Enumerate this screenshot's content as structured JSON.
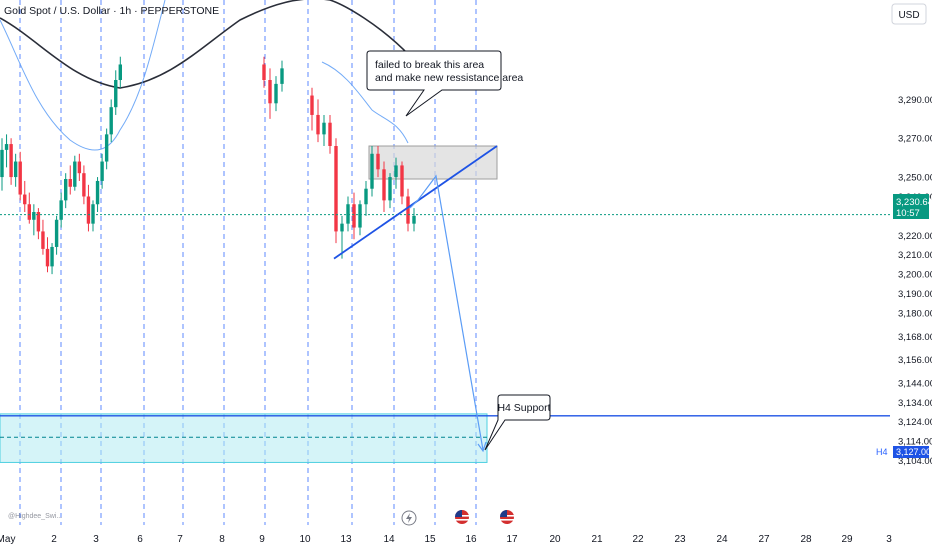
{
  "header": {
    "title": "Gold Spot / U.S. Dollar · 1h · PEPPERSTONE"
  },
  "currency": "USD",
  "price_tag": {
    "price": "3,230.64",
    "countdown": "10:57"
  },
  "level_tag": {
    "prefix": "H4",
    "price": "3,127.00"
  },
  "watermark": "@Highdee_Swi...",
  "annotations": {
    "resistance_note": [
      "failed to break this area",
      "and make new ressistance area"
    ],
    "support_note": "H4 Support"
  },
  "icons": {
    "event_1": "lightning-icon",
    "event_2": "us-flag-icon",
    "event_3": "us-flag-icon"
  },
  "colors": {
    "bull": "#089981",
    "bear": "#f23645",
    "accent": "#2962ff",
    "support_zone": "#b2ebf2"
  },
  "chart_data": {
    "type": "candlestick",
    "title": "Gold Spot / U.S. Dollar · 1h · PEPPERSTONE",
    "y_ticks": [
      3290,
      3270,
      3250,
      3240,
      3220,
      3210,
      3200,
      3190,
      3180,
      3168,
      3156,
      3144,
      3134,
      3124,
      3114,
      3104
    ],
    "y_tick_labels": [
      "3,290.00",
      "3,270.00",
      "3,250.00",
      "3,240.00",
      "3,220.00",
      "3,210.00",
      "3,200.00",
      "3,190.00",
      "3,180.00",
      "3,168.00",
      "3,156.00",
      "3,144.00",
      "3,134.00",
      "3,124.00",
      "3,114.00",
      "3,104.00"
    ],
    "x_ticks": [
      "May",
      "2",
      "3",
      "6",
      "7",
      "8",
      "9",
      "10",
      "13",
      "14",
      "15",
      "16",
      "17",
      "20",
      "21",
      "22",
      "23",
      "24",
      "27",
      "28",
      "29",
      "3"
    ],
    "current_price": 3230.64,
    "key_level": 3127.0,
    "resistance_zone": [
      3249,
      3266
    ],
    "support_zone": [
      3103,
      3128
    ],
    "trendline_from": [
      "May 12",
      3208
    ],
    "trendline_to": [
      "May 15",
      3266
    ],
    "projection_target": 3127.0,
    "candles": [
      {
        "o": 3250,
        "h": 3270,
        "l": 3243,
        "c": 3264
      },
      {
        "o": 3264,
        "h": 3272,
        "l": 3255,
        "c": 3267
      },
      {
        "o": 3267,
        "h": 3270,
        "l": 3246,
        "c": 3250
      },
      {
        "o": 3250,
        "h": 3262,
        "l": 3245,
        "c": 3258
      },
      {
        "o": 3258,
        "h": 3263,
        "l": 3238,
        "c": 3241
      },
      {
        "o": 3241,
        "h": 3248,
        "l": 3232,
        "c": 3236
      },
      {
        "o": 3236,
        "h": 3242,
        "l": 3226,
        "c": 3228
      },
      {
        "o": 3228,
        "h": 3236,
        "l": 3220,
        "c": 3232
      },
      {
        "o": 3232,
        "h": 3234,
        "l": 3218,
        "c": 3222
      },
      {
        "o": 3222,
        "h": 3228,
        "l": 3210,
        "c": 3213
      },
      {
        "o": 3213,
        "h": 3219,
        "l": 3201,
        "c": 3204
      },
      {
        "o": 3204,
        "h": 3216,
        "l": 3200,
        "c": 3214
      },
      {
        "o": 3214,
        "h": 3230,
        "l": 3210,
        "c": 3228
      },
      {
        "o": 3228,
        "h": 3242,
        "l": 3224,
        "c": 3238
      },
      {
        "o": 3238,
        "h": 3252,
        "l": 3234,
        "c": 3249
      },
      {
        "o": 3249,
        "h": 3256,
        "l": 3241,
        "c": 3245
      },
      {
        "o": 3245,
        "h": 3261,
        "l": 3243,
        "c": 3258
      },
      {
        "o": 3258,
        "h": 3262,
        "l": 3248,
        "c": 3252
      },
      {
        "o": 3252,
        "h": 3256,
        "l": 3236,
        "c": 3240
      },
      {
        "o": 3240,
        "h": 3246,
        "l": 3222,
        "c": 3226
      },
      {
        "o": 3226,
        "h": 3238,
        "l": 3222,
        "c": 3236
      },
      {
        "o": 3236,
        "h": 3250,
        "l": 3232,
        "c": 3248
      },
      {
        "o": 3248,
        "h": 3262,
        "l": 3244,
        "c": 3258
      },
      {
        "o": 3258,
        "h": 3275,
        "l": 3254,
        "c": 3272
      },
      {
        "o": 3272,
        "h": 3290,
        "l": 3268,
        "c": 3286
      },
      {
        "o": 3286,
        "h": 3305,
        "l": 3282,
        "c": 3300
      },
      {
        "o": 3300,
        "h": 3312,
        "l": 3296,
        "c": 3308
      },
      {
        "o": 3308,
        "h": 3312,
        "l": 3296,
        "c": 3300
      },
      {
        "o": 3300,
        "h": 3306,
        "l": 3280,
        "c": 3288
      },
      {
        "o": 3288,
        "h": 3302,
        "l": 3284,
        "c": 3298
      },
      {
        "o": 3298,
        "h": 3310,
        "l": 3294,
        "c": 3306
      },
      {
        "o": 3292,
        "h": 3296,
        "l": 3274,
        "c": 3282
      },
      {
        "o": 3282,
        "h": 3290,
        "l": 3268,
        "c": 3272
      },
      {
        "o": 3272,
        "h": 3282,
        "l": 3266,
        "c": 3278
      },
      {
        "o": 3278,
        "h": 3282,
        "l": 3262,
        "c": 3266
      },
      {
        "o": 3266,
        "h": 3270,
        "l": 3216,
        "c": 3222
      },
      {
        "o": 3222,
        "h": 3230,
        "l": 3208,
        "c": 3226
      },
      {
        "o": 3226,
        "h": 3240,
        "l": 3222,
        "c": 3236
      },
      {
        "o": 3236,
        "h": 3242,
        "l": 3218,
        "c": 3224
      },
      {
        "o": 3224,
        "h": 3238,
        "l": 3220,
        "c": 3236
      },
      {
        "o": 3236,
        "h": 3248,
        "l": 3230,
        "c": 3244
      },
      {
        "o": 3244,
        "h": 3266,
        "l": 3240,
        "c": 3262
      },
      {
        "o": 3262,
        "h": 3266,
        "l": 3250,
        "c": 3254
      },
      {
        "o": 3254,
        "h": 3258,
        "l": 3232,
        "c": 3238
      },
      {
        "o": 3238,
        "h": 3252,
        "l": 3234,
        "c": 3250
      },
      {
        "o": 3250,
        "h": 3260,
        "l": 3244,
        "c": 3256
      },
      {
        "o": 3256,
        "h": 3258,
        "l": 3236,
        "c": 3240
      },
      {
        "o": 3240,
        "h": 3244,
        "l": 3222,
        "c": 3226
      },
      {
        "o": 3226,
        "h": 3234,
        "l": 3222,
        "c": 3230
      }
    ]
  }
}
